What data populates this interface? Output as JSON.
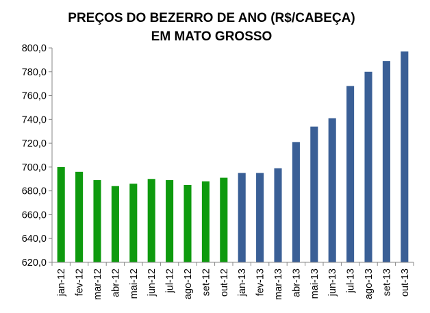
{
  "chart_data": {
    "type": "bar",
    "title_lines": [
      "PREÇOS DO BEZERRO DE ANO (R$/CABEÇA)",
      "EM MATO GROSSO"
    ],
    "categories": [
      "jan-12",
      "fev-12",
      "mar-12",
      "abr-12",
      "mai-12",
      "jun-12",
      "jul-12",
      "ago-12",
      "set-12",
      "out-12",
      "jan-13",
      "fev-13",
      "mar-13",
      "abr-13",
      "mai-13",
      "jun-13",
      "jul-13",
      "ago-13",
      "set-13",
      "out-13"
    ],
    "values": [
      700,
      696,
      689,
      684,
      686,
      690,
      689,
      685,
      688,
      691,
      695,
      695,
      699,
      721,
      734,
      741,
      768,
      780,
      789,
      797
    ],
    "bar_colors": [
      "#0e9a0e",
      "#0e9a0e",
      "#0e9a0e",
      "#0e9a0e",
      "#0e9a0e",
      "#0e9a0e",
      "#0e9a0e",
      "#0e9a0e",
      "#0e9a0e",
      "#0e9a0e",
      "#3a5f96",
      "#3a5f96",
      "#3a5f96",
      "#3a5f96",
      "#3a5f96",
      "#3a5f96",
      "#3a5f96",
      "#3a5f96",
      "#3a5f96",
      "#3a5f96"
    ],
    "ylim": [
      620,
      800
    ],
    "yticks": [
      "620,0",
      "640,0",
      "660,0",
      "680,0",
      "700,0",
      "720,0",
      "740,0",
      "760,0",
      "780,0",
      "800,0"
    ],
    "grid": false,
    "xlabel": "",
    "ylabel": ""
  }
}
